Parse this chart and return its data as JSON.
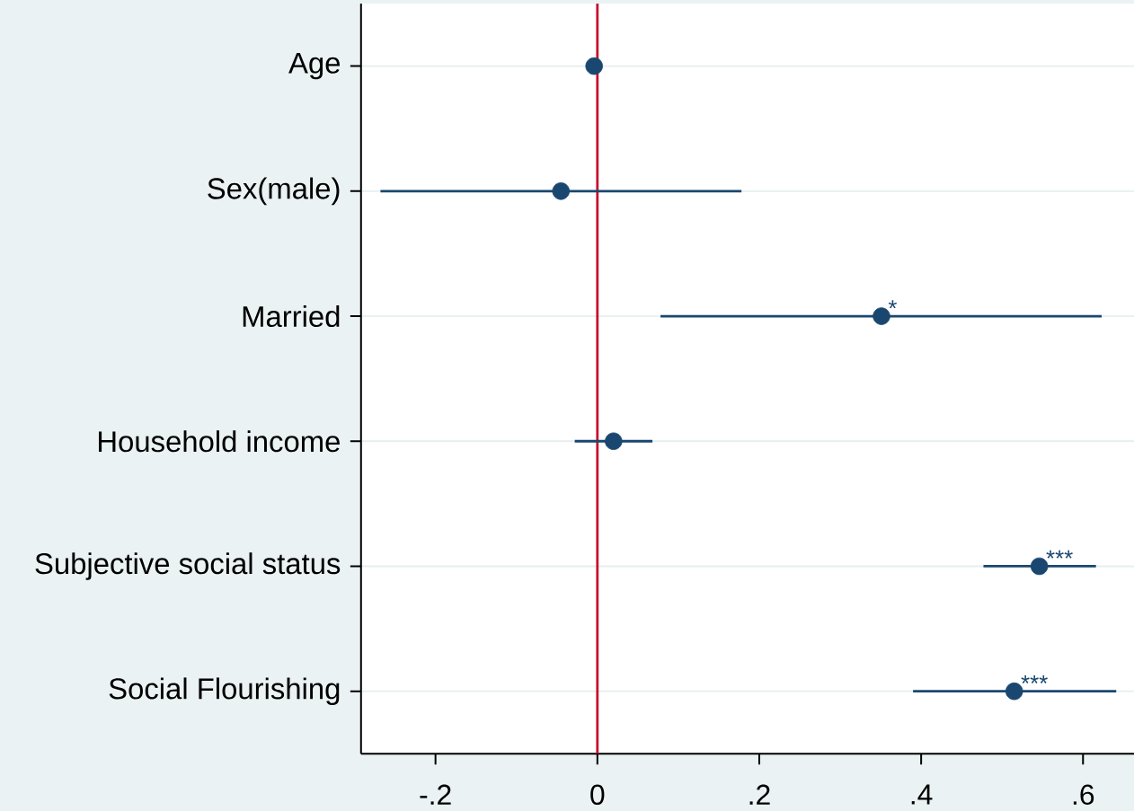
{
  "chart_data": {
    "type": "scatter",
    "orientation": "horizontal",
    "categories": [
      "Age",
      "Sex(male)",
      "Married",
      "Household income",
      "Subjective social status",
      "Social Flourishing"
    ],
    "values": [
      -0.004,
      -0.045,
      0.351,
      0.02,
      0.546,
      0.515
    ],
    "errors": [
      null,
      [
        -0.268,
        0.178
      ],
      [
        0.078,
        0.623
      ],
      [
        -0.028,
        0.068
      ],
      [
        0.477,
        0.616
      ],
      [
        0.39,
        0.641
      ]
    ],
    "color": "#1a476f",
    "marker": "circle",
    "xlim": [
      -0.292,
      0.663
    ],
    "xticks": [
      {
        "value": -0.2,
        "label": "-.2"
      },
      0,
      {
        "value": 0.2,
        "label": ".2"
      },
      {
        "value": 0.4,
        "label": ".4"
      },
      {
        "value": 0.6,
        "label": ".6"
      }
    ],
    "grid": "y",
    "ref_lines": [
      {
        "axis": "x",
        "value": 0,
        "color": "#c8102e"
      }
    ],
    "annotations": [
      {
        "text": "*",
        "x": 0.351,
        "y": "Married"
      },
      {
        "text": "***",
        "x": 0.546,
        "y": "Subjective social status"
      },
      {
        "text": "***",
        "x": 0.515,
        "y": "Social Flourishing"
      }
    ]
  }
}
